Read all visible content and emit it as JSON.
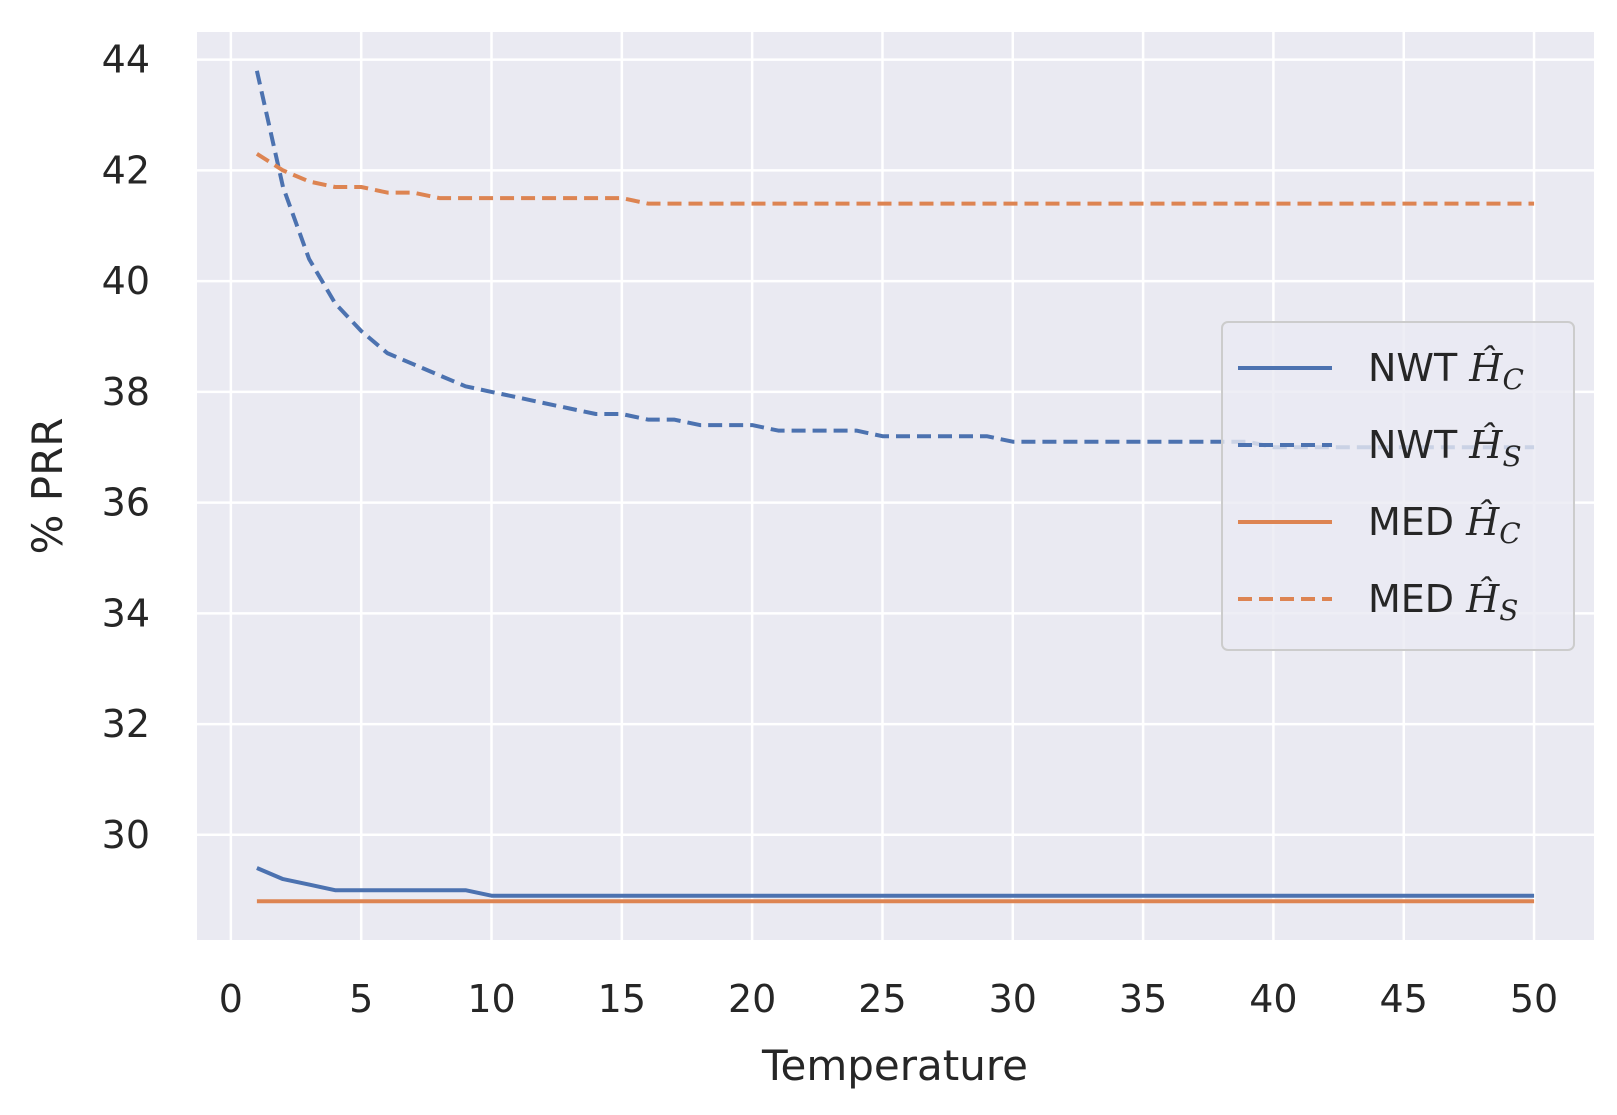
{
  "chart_data": {
    "type": "line",
    "title": "",
    "xlabel": "Temperature",
    "ylabel": "% PRR",
    "xlim": [
      -1.3,
      52.3
    ],
    "ylim": [
      28.1,
      44.5
    ],
    "xticks": [
      0,
      5,
      10,
      15,
      20,
      25,
      30,
      35,
      40,
      45,
      50
    ],
    "yticks": [
      30,
      32,
      34,
      36,
      38,
      40,
      42,
      44
    ],
    "grid": true,
    "legend_position": "center-right",
    "series": [
      {
        "name": "NWT Ĥ_C",
        "legend_base": "NWT ",
        "legend_sub": "C",
        "color": "#4c72b0",
        "dash": "solid",
        "x": [
          1,
          2,
          3,
          4,
          9,
          10,
          50
        ],
        "y": [
          29.4,
          29.2,
          29.1,
          29.0,
          29.0,
          28.9,
          28.9
        ]
      },
      {
        "name": "NWT Ĥ_S",
        "legend_base": "NWT ",
        "legend_sub": "S",
        "color": "#4c72b0",
        "dash": "dashed",
        "x": [
          1,
          2,
          3,
          4,
          5,
          6,
          7,
          8,
          9,
          10,
          11,
          12,
          13,
          14,
          15,
          16,
          17,
          18,
          19,
          20,
          21,
          22,
          23,
          24,
          25,
          26,
          27,
          28,
          29,
          30,
          35,
          39,
          40,
          50
        ],
        "y": [
          43.8,
          41.7,
          40.4,
          39.6,
          39.1,
          38.7,
          38.5,
          38.3,
          38.1,
          38.0,
          37.9,
          37.8,
          37.7,
          37.6,
          37.6,
          37.5,
          37.5,
          37.4,
          37.4,
          37.4,
          37.3,
          37.3,
          37.3,
          37.3,
          37.2,
          37.2,
          37.2,
          37.2,
          37.2,
          37.1,
          37.1,
          37.1,
          37.0,
          37.0
        ]
      },
      {
        "name": "MED Ĥ_C",
        "legend_base": "MED ",
        "legend_sub": "C",
        "color": "#dd8452",
        "dash": "solid",
        "x": [
          1,
          50
        ],
        "y": [
          28.8,
          28.8
        ]
      },
      {
        "name": "MED Ĥ_S",
        "legend_base": "MED ",
        "legend_sub": "S",
        "color": "#dd8452",
        "dash": "dashed",
        "x": [
          1,
          2,
          3,
          4,
          5,
          6,
          7,
          8,
          9,
          15,
          16,
          50
        ],
        "y": [
          42.3,
          42.0,
          41.8,
          41.7,
          41.7,
          41.6,
          41.6,
          41.5,
          41.5,
          41.5,
          41.4,
          41.4
        ]
      }
    ]
  }
}
